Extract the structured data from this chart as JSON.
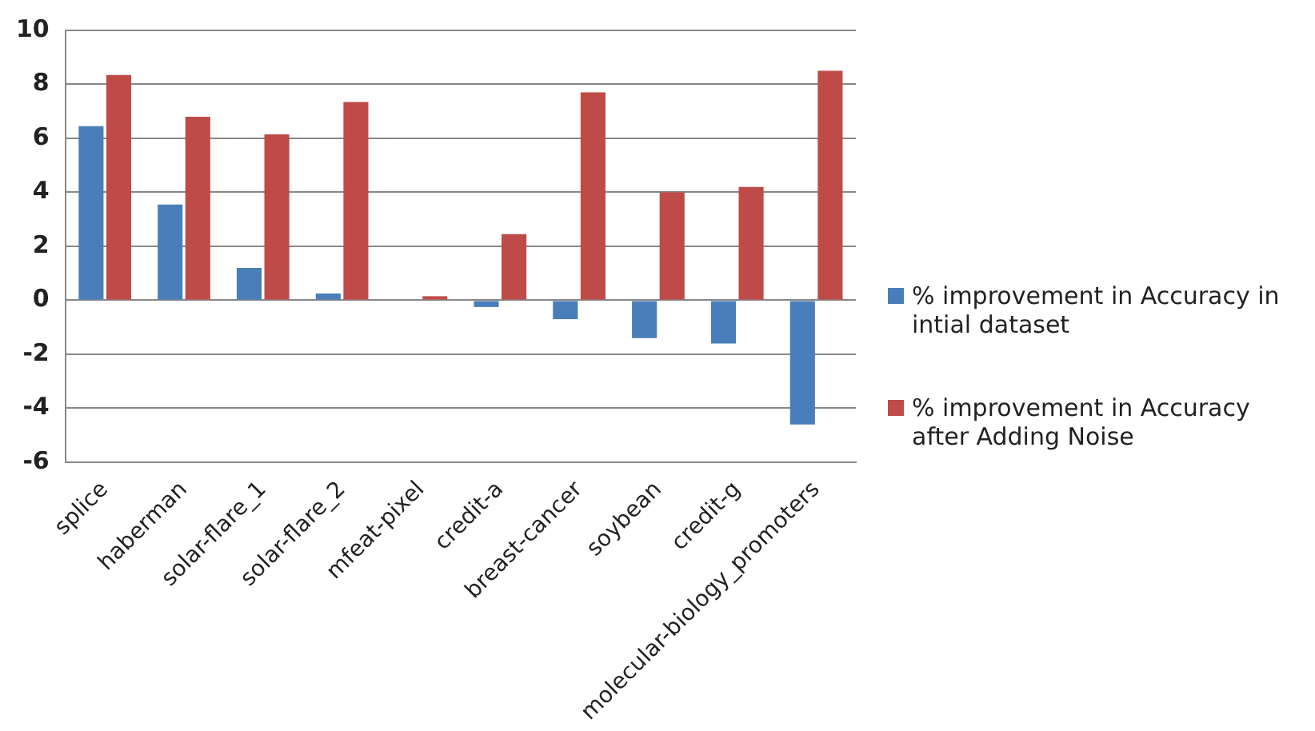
{
  "chart_data": {
    "type": "bar",
    "categories": [
      "splice",
      "haberman",
      "solar-flare_1",
      "solar-flare_2",
      "mfeat-pixel",
      "credit-a",
      "breast-cancer",
      "soybean",
      "credit-g",
      "molecular-biology_promoters"
    ],
    "series": [
      {
        "name": "% improvement in Accuracy in intial  dataset",
        "color": "#4a7ebb",
        "values": [
          6.45,
          3.55,
          1.2,
          0.25,
          0,
          -0.25,
          -0.7,
          -1.4,
          -1.6,
          -4.6
        ]
      },
      {
        "name": "% improvement in Accuracy after Adding Noise",
        "color": "#be4b48",
        "values": [
          8.35,
          6.8,
          6.15,
          7.35,
          0.15,
          2.45,
          7.7,
          4.0,
          4.2,
          8.5
        ]
      }
    ],
    "ylim": [
      -6,
      10
    ],
    "yticks": [
      -6,
      -4,
      -2,
      0,
      2,
      4,
      6,
      8,
      10
    ],
    "grid": "y",
    "legend": "right"
  }
}
